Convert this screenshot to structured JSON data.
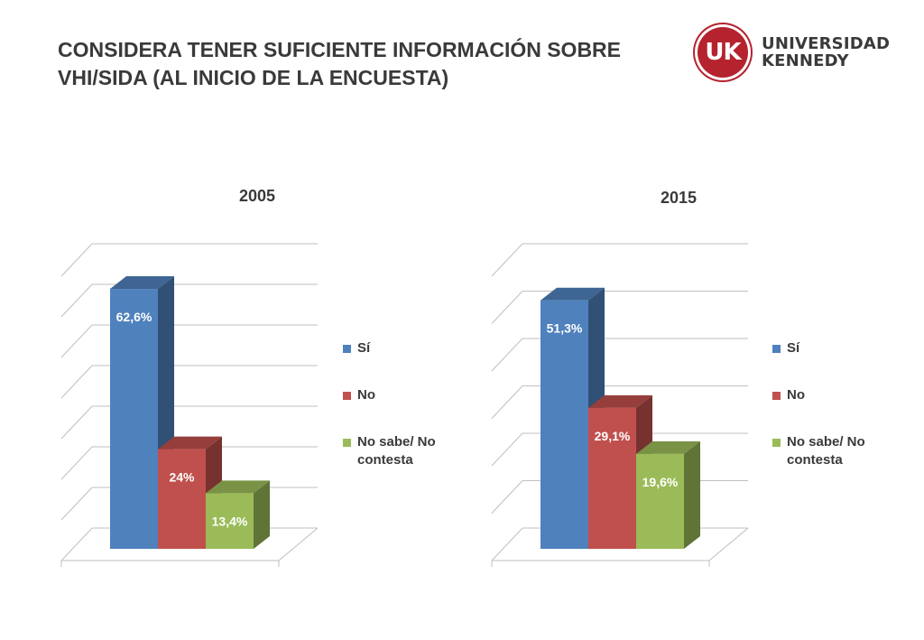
{
  "page": {
    "title_line1": "CONSIDERA TENER SUFICIENTE INFORMACIÓN SOBRE",
    "title_line2": "VHI/SIDA (AL INICIO DE LA ENCUESTA)"
  },
  "logo": {
    "mark": "UK",
    "line1": "UNIVERSIDAD",
    "line2": "KENNEDY",
    "color": "#b5232f"
  },
  "colors": {
    "si": "#4f81bd",
    "no": "#c0504d",
    "nosabe": "#9bbb59"
  },
  "chart_data": [
    {
      "type": "bar",
      "title": "2005",
      "categories": [
        "Sí",
        "No",
        "No sabe/ No contesta"
      ],
      "values": [
        62.6,
        24,
        13.4
      ],
      "data_labels": [
        "62,6%",
        "24%",
        "13,4%"
      ],
      "ylim": [
        0,
        70
      ],
      "grid": true,
      "legend": [
        "Sí",
        "No",
        "No sabe/ No contesta"
      ],
      "legend_position": "right"
    },
    {
      "type": "bar",
      "title": "2015",
      "categories": [
        "Sí",
        "No",
        "No sabe/ No contesta"
      ],
      "values": [
        51.3,
        29.1,
        19.6
      ],
      "data_labels": [
        "51,3%",
        "29,1%",
        "19,6%"
      ],
      "ylim": [
        0,
        60
      ],
      "grid": true,
      "legend": [
        "Sí",
        "No",
        "No sabe/ No contesta"
      ],
      "legend_position": "right"
    }
  ]
}
